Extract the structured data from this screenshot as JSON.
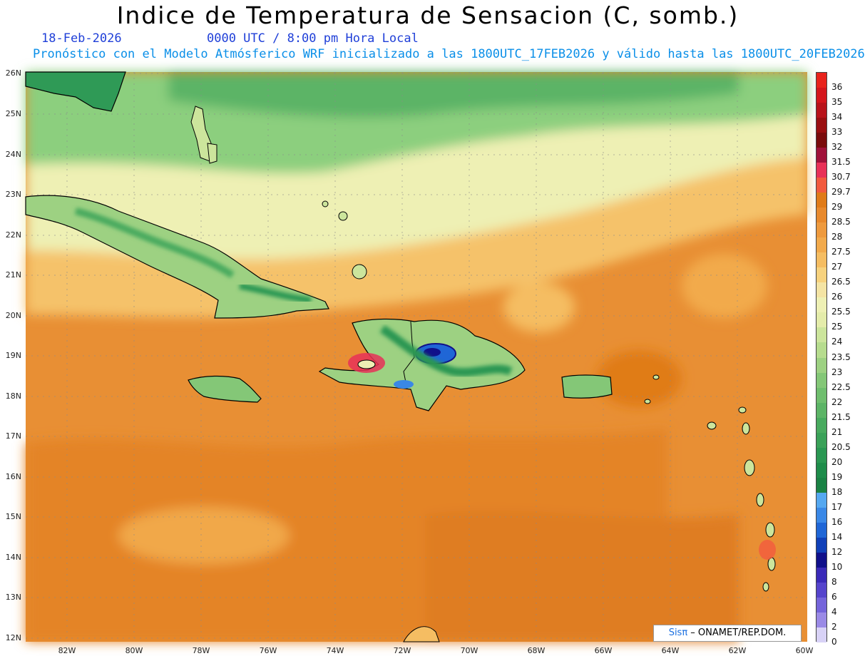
{
  "header": {
    "title": "Indice de Temperatura de Sensacion (C, somb.)",
    "date": "18-Feb-2026",
    "time": "0000 UTC / 8:00 pm Hora Local",
    "model_line": "Pronóstico con el Modelo Atmósferico WRF inicializado a las 1800UTC_17FEB2026 y válido hasta las  1800UTC_20FEB2026"
  },
  "axes": {
    "lat_ticks": [
      "26N",
      "25N",
      "24N",
      "23N",
      "22N",
      "21N",
      "20N",
      "19N",
      "18N",
      "17N",
      "16N",
      "15N",
      "14N",
      "13N",
      "12N"
    ],
    "lon_ticks": [
      "82W",
      "80W",
      "78W",
      "76W",
      "74W",
      "72W",
      "70W",
      "68W",
      "66W",
      "64W",
      "62W",
      "60W"
    ]
  },
  "colorbar": {
    "levels": [
      "36",
      "35",
      "34",
      "33",
      "32",
      "31.5",
      "30.7",
      "29.7",
      "29",
      "28.5",
      "28",
      "27.5",
      "27",
      "26.5",
      "26",
      "25.5",
      "25",
      "24",
      "23.5",
      "23",
      "22.5",
      "22",
      "21.5",
      "21",
      "20.5",
      "20",
      "19",
      "18",
      "17",
      "16",
      "14",
      "12",
      "10",
      "8",
      "6",
      "4",
      "2",
      "0"
    ],
    "colors": [
      "#e8231c",
      "#d4161c",
      "#b8131a",
      "#9a0f10",
      "#7a0c0c",
      "#a0123a",
      "#e83158",
      "#f25a3e",
      "#e07b18",
      "#e8892c",
      "#ee9a3e",
      "#f2aa4c",
      "#f5bd62",
      "#f7d27e",
      "#f4e4a4",
      "#eef0b4",
      "#e4ecaa",
      "#cce59c",
      "#b6dc8e",
      "#9dd182",
      "#84c777",
      "#6fbe6e",
      "#5cb466",
      "#48aa5e",
      "#3aa158",
      "#2a9752",
      "#1e8c4a",
      "#1a8244",
      "#55a8f0",
      "#3a88e6",
      "#1f66d6",
      "#1040b8",
      "#10108a",
      "#3a2ab8",
      "#5544cc",
      "#7464da",
      "#9a8ae6",
      "#d8d2f6"
    ]
  },
  "credit": {
    "sis": "Sisπ",
    "rest": " – ONAMET/REP.DOM."
  }
}
